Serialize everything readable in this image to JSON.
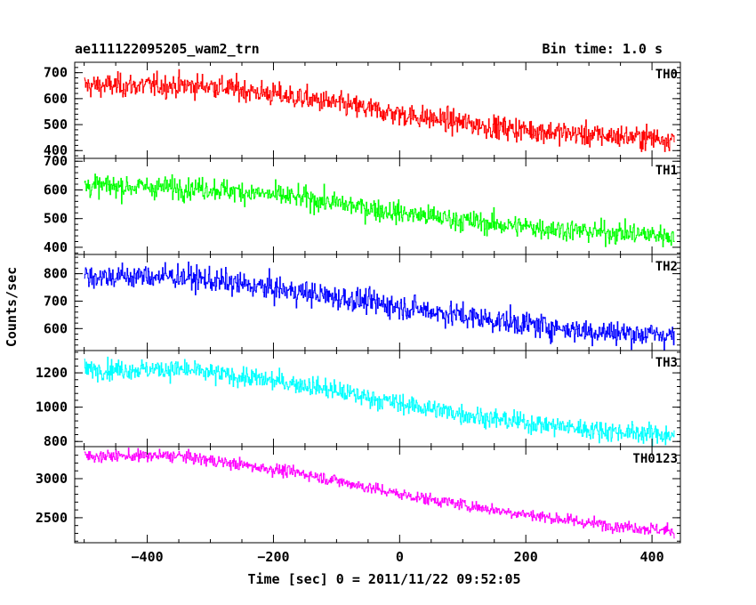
{
  "header": {
    "title": "ae111122095205_wam2_trn",
    "bin_time": "Bin time: 1.0 s"
  },
  "chart_data": {
    "type": "line",
    "xlabel": "Time [sec] 0 = 2011/11/22 09:52:05",
    "ylabel": "Counts/sec",
    "xlim": [
      -515,
      445
    ],
    "x_ticks": [
      -400,
      -200,
      0,
      200,
      400
    ],
    "x_range": [
      -500,
      435
    ],
    "panels": [
      {
        "name": "TH0",
        "color": "#ff0000",
        "ylim": [
          370,
          740
        ],
        "y_ticks": [
          400,
          500,
          600,
          700
        ],
        "trend": [
          [
            -500,
            650
          ],
          [
            -300,
            650
          ],
          [
            -150,
            600
          ],
          [
            0,
            540
          ],
          [
            150,
            490
          ],
          [
            300,
            460
          ],
          [
            435,
            445
          ]
        ],
        "noise": 35
      },
      {
        "name": "TH1",
        "color": "#00ff00",
        "ylim": [
          375,
          710
        ],
        "y_ticks": [
          400,
          500,
          600,
          700
        ],
        "trend": [
          [
            -500,
            615
          ],
          [
            -300,
            605
          ],
          [
            -150,
            570
          ],
          [
            0,
            520
          ],
          [
            150,
            480
          ],
          [
            300,
            455
          ],
          [
            435,
            440
          ]
        ],
        "noise": 30
      },
      {
        "name": "TH2",
        "color": "#0000ff",
        "ylim": [
          520,
          870
        ],
        "y_ticks": [
          600,
          700,
          800
        ],
        "trend": [
          [
            -500,
            790
          ],
          [
            -350,
            790
          ],
          [
            -150,
            730
          ],
          [
            0,
            680
          ],
          [
            150,
            630
          ],
          [
            300,
            590
          ],
          [
            435,
            575
          ]
        ],
        "noise": 35
      },
      {
        "name": "TH3",
        "color": "#00ffff",
        "ylim": [
          770,
          1330
        ],
        "y_ticks": [
          800,
          1000,
          1200
        ],
        "trend": [
          [
            -500,
            1220
          ],
          [
            -350,
            1220
          ],
          [
            -150,
            1130
          ],
          [
            0,
            1020
          ],
          [
            150,
            930
          ],
          [
            300,
            870
          ],
          [
            435,
            835
          ]
        ],
        "noise": 45
      },
      {
        "name": "TH0123",
        "color": "#ff00ff",
        "ylim": [
          2180,
          3410
        ],
        "y_ticks": [
          2500,
          3000
        ],
        "trend": [
          [
            -500,
            3290
          ],
          [
            -350,
            3290
          ],
          [
            -150,
            3060
          ],
          [
            0,
            2800
          ],
          [
            150,
            2600
          ],
          [
            300,
            2430
          ],
          [
            435,
            2330
          ]
        ],
        "noise": 60
      }
    ]
  }
}
